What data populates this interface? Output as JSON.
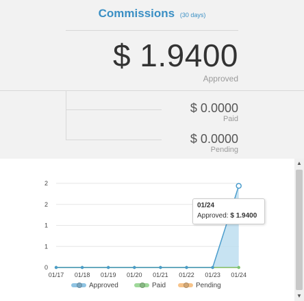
{
  "header": {
    "title": "Commissions",
    "subtitle": "(30 days)"
  },
  "approved": {
    "amount": "$ 1.9400",
    "label": "Approved"
  },
  "paid": {
    "amount": "$ 0.0000",
    "label": "Paid"
  },
  "pending": {
    "amount": "$ 0.0000",
    "label": "Pending"
  },
  "tooltip": {
    "date": "01/24",
    "series_label": "Approved:",
    "value": "$ 1.9400"
  },
  "colors": {
    "accent": "#3a8fc4",
    "approved_line": "#4a9ccc",
    "approved_fill": "#b9dcef",
    "paid": "#7cc576",
    "pending": "#f5b56b"
  },
  "icons": {
    "scroll_up": "triangle-up-icon",
    "scroll_down": "triangle-down-icon"
  },
  "chart_data": {
    "type": "area",
    "categories": [
      "01/17",
      "01/18",
      "01/19",
      "01/20",
      "01/21",
      "01/22",
      "01/23",
      "01/24"
    ],
    "y_tick_labels": [
      "0",
      "1",
      "1",
      "2",
      "2"
    ],
    "ylim": [
      0,
      2
    ],
    "grid": true,
    "legend_position": "bottom",
    "series": [
      {
        "name": "Approved",
        "values": [
          0,
          0,
          0,
          0,
          0,
          0,
          0,
          1.94
        ]
      },
      {
        "name": "Paid",
        "values": [
          0,
          0,
          0,
          0,
          0,
          0,
          0,
          0
        ]
      },
      {
        "name": "Pending",
        "values": [
          0,
          0,
          0,
          0,
          0,
          0,
          0,
          0
        ]
      }
    ]
  }
}
